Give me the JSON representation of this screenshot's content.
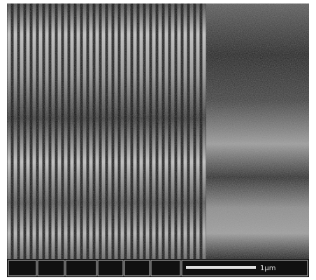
{
  "scale_bar": {
    "label": "1μm"
  }
}
